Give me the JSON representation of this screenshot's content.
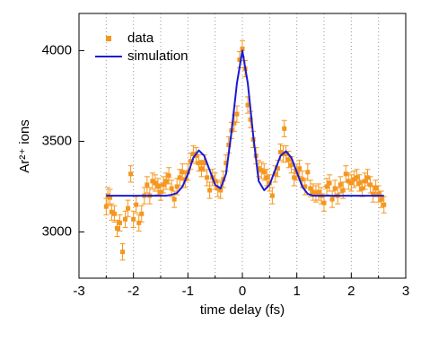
{
  "chart_data": {
    "type": "scatter-line",
    "x_label": "time delay (fs)",
    "y_label": "Ar²⁺ ions",
    "xlim": [
      -3,
      3
    ],
    "ylim": [
      2745,
      4205
    ],
    "xticks": [
      -3,
      -2,
      -1,
      0,
      1,
      2,
      3
    ],
    "x_minor_ticks": [
      -2.5,
      -1.5,
      -0.5,
      0.5,
      1.5,
      2.5
    ],
    "yticks": [
      3000,
      3500,
      4000
    ],
    "grid": "x-dotted",
    "legend": "upper-left",
    "series": [
      {
        "name": "data",
        "color": "#f5961e",
        "marker": "square",
        "x": [
          -2.5,
          -2.47,
          -2.43,
          -2.4,
          -2.35,
          -2.3,
          -2.25,
          -2.2,
          -2.15,
          -2.1,
          -2.05,
          -2.0,
          -1.95,
          -1.9,
          -1.85,
          -1.8,
          -1.75,
          -1.7,
          -1.65,
          -1.6,
          -1.55,
          -1.5,
          -1.45,
          -1.4,
          -1.35,
          -1.3,
          -1.25,
          -1.2,
          -1.15,
          -1.1,
          -1.05,
          -1.0,
          -0.95,
          -0.9,
          -0.85,
          -0.8,
          -0.75,
          -0.7,
          -0.65,
          -0.6,
          -0.55,
          -0.5,
          -0.45,
          -0.4,
          -0.35,
          -0.3,
          -0.25,
          -0.2,
          -0.15,
          -0.1,
          -0.05,
          0,
          0.05,
          0.1,
          0.15,
          0.2,
          0.25,
          0.3,
          0.35,
          0.4,
          0.45,
          0.5,
          0.55,
          0.6,
          0.65,
          0.7,
          0.75,
          0.8,
          0.85,
          0.9,
          0.95,
          1.0,
          1.05,
          1.1,
          1.15,
          1.2,
          1.25,
          1.3,
          1.35,
          1.4,
          1.45,
          1.5,
          1.55,
          1.6,
          1.65,
          1.7,
          1.75,
          1.8,
          1.85,
          1.9,
          1.95,
          2.0,
          2.05,
          2.1,
          2.15,
          2.2,
          2.25,
          2.3,
          2.35,
          2.4,
          2.45,
          2.5,
          2.55,
          2.6,
          0.77
        ],
        "values": [
          3140,
          3200,
          3190,
          3110,
          3100,
          3020,
          3050,
          2890,
          3070,
          3130,
          3320,
          3070,
          3150,
          3050,
          3100,
          3200,
          3260,
          3200,
          3280,
          3270,
          3250,
          3220,
          3260,
          3280,
          3310,
          3240,
          3180,
          3250,
          3300,
          3330,
          3290,
          3330,
          3390,
          3430,
          3420,
          3380,
          3350,
          3380,
          3300,
          3230,
          3300,
          3280,
          3240,
          3230,
          3290,
          3380,
          3480,
          3560,
          3600,
          3650,
          3950,
          4010,
          3900,
          3700,
          3620,
          3510,
          3420,
          3350,
          3340,
          3330,
          3300,
          3270,
          3200,
          3320,
          3350,
          3440,
          3430,
          3430,
          3400,
          3370,
          3300,
          3330,
          3350,
          3290,
          3250,
          3330,
          3240,
          3220,
          3210,
          3220,
          3200,
          3160,
          3250,
          3270,
          3180,
          3240,
          3200,
          3260,
          3230,
          3320,
          3280,
          3270,
          3290,
          3300,
          3270,
          3240,
          3280,
          3300,
          3260,
          3210,
          3240,
          3210,
          3180,
          3150,
          3570
        ],
        "errors": [
          45,
          45,
          45,
          45,
          45,
          45,
          45,
          45,
          45,
          45,
          45,
          45,
          45,
          45,
          45,
          45,
          45,
          45,
          45,
          45,
          45,
          45,
          45,
          45,
          45,
          45,
          45,
          45,
          45,
          45,
          45,
          45,
          45,
          45,
          45,
          45,
          45,
          45,
          45,
          45,
          45,
          45,
          45,
          45,
          45,
          45,
          45,
          45,
          45,
          45,
          45,
          45,
          45,
          45,
          45,
          45,
          45,
          45,
          45,
          45,
          45,
          45,
          45,
          45,
          45,
          45,
          45,
          45,
          45,
          45,
          45,
          45,
          45,
          45,
          45,
          45,
          45,
          45,
          45,
          45,
          45,
          45,
          45,
          45,
          45,
          45,
          45,
          45,
          45,
          45,
          45,
          45,
          45,
          45,
          45,
          45,
          45,
          45,
          45,
          45,
          45,
          45,
          45,
          45,
          45
        ]
      },
      {
        "name": "simulation",
        "color": "#1a1ad6",
        "marker": "line",
        "x": [
          -2.5,
          -2.4,
          -2.3,
          -2.2,
          -2.1,
          -2.0,
          -1.9,
          -1.8,
          -1.7,
          -1.6,
          -1.5,
          -1.4,
          -1.3,
          -1.2,
          -1.1,
          -1.0,
          -0.9,
          -0.8,
          -0.7,
          -0.6,
          -0.5,
          -0.4,
          -0.3,
          -0.2,
          -0.1,
          0,
          0.1,
          0.2,
          0.3,
          0.4,
          0.5,
          0.6,
          0.7,
          0.8,
          0.9,
          1.0,
          1.1,
          1.2,
          1.3,
          1.4,
          1.5,
          1.6,
          1.7,
          1.8,
          1.9,
          2.0,
          2.1,
          2.2,
          2.3,
          2.4,
          2.5,
          2.6
        ],
        "values": [
          3200,
          3200,
          3200,
          3200,
          3200,
          3200,
          3200,
          3200,
          3200,
          3200,
          3200,
          3200,
          3205,
          3215,
          3250,
          3320,
          3410,
          3450,
          3420,
          3340,
          3260,
          3240,
          3320,
          3550,
          3820,
          4000,
          3820,
          3530,
          3280,
          3230,
          3260,
          3340,
          3420,
          3445,
          3410,
          3330,
          3250,
          3210,
          3200,
          3200,
          3200,
          3200,
          3200,
          3200,
          3200,
          3200,
          3200,
          3200,
          3200,
          3200,
          3200,
          3200
        ]
      }
    ]
  }
}
